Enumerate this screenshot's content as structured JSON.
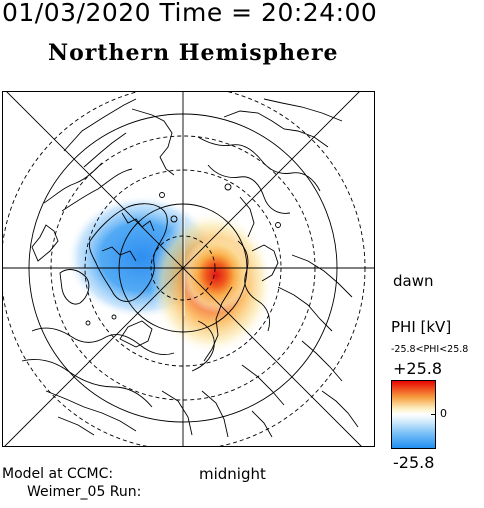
{
  "header": {
    "datetime": "01/03/2020 Time = 20:24:00",
    "hemisphere": "Northern Hemisphere"
  },
  "map": {
    "projection": "polar-stereographic",
    "center": "north-pole",
    "latitude_circles_dashed": true,
    "meridian_grid": true,
    "potential_pattern": {
      "negative_cell": {
        "color": "#2f8ef0",
        "side": "pre-midnight / dusk"
      },
      "positive_cell": {
        "color": "#e81818",
        "side": "post-midnight / dawn"
      }
    },
    "labels": {
      "dawn": "dawn",
      "midnight": "midnight"
    }
  },
  "colorbar": {
    "title": "PHI [kV]",
    "range_text": "-25.8<PHI<25.8",
    "max_label": "+25.8",
    "min_label": "-25.8",
    "zero_label": "0",
    "max_value": 25.8,
    "min_value": -25.8,
    "colors": {
      "top": "#e80000",
      "mid": "#ffffff",
      "bottom": "#1e8ef2"
    }
  },
  "model": {
    "line1": "Model at CCMC:",
    "line2": "Weimer_05 Run:"
  }
}
